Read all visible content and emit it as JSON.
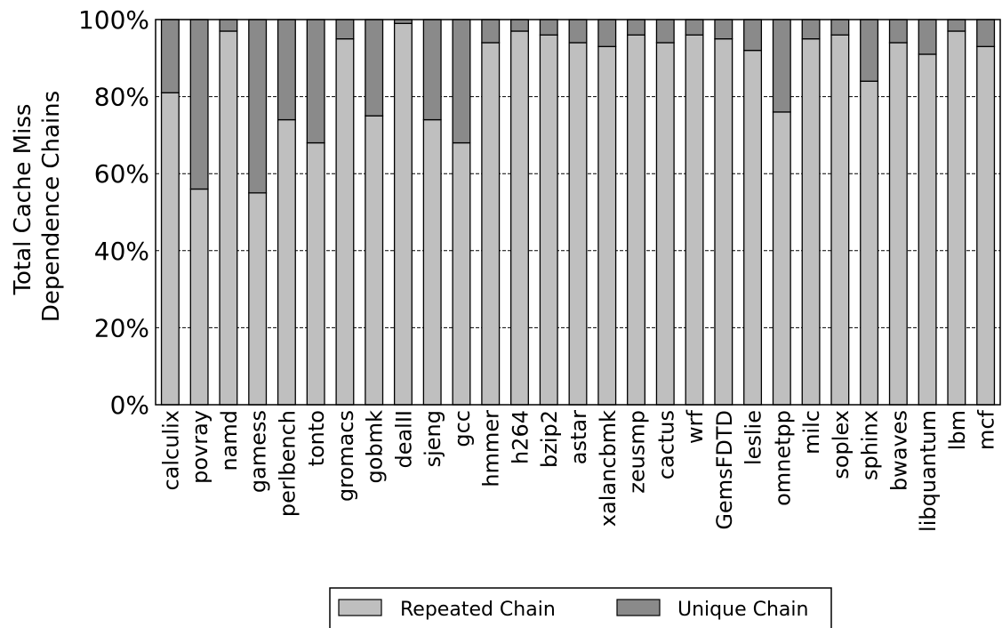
{
  "chart_data": {
    "type": "bar",
    "stacked": true,
    "ylabel_lines": [
      "Total Cache Miss",
      "Dependence Chains"
    ],
    "xlabel": "",
    "ylim": [
      0,
      100
    ],
    "y_ticks": [
      "0%",
      "20%",
      "40%",
      "60%",
      "80%",
      "100%"
    ],
    "grid": "horizontal dashed",
    "legend_position": "bottom-center",
    "categories": [
      "calculix",
      "povray",
      "namd",
      "gamess",
      "perlbench",
      "tonto",
      "gromacs",
      "gobmk",
      "dealII",
      "sjeng",
      "gcc",
      "hmmer",
      "h264",
      "bzip2",
      "astar",
      "xalancbmk",
      "zeusmp",
      "cactus",
      "wrf",
      "GemsFDTD",
      "leslie",
      "omnetpp",
      "milc",
      "soplex",
      "sphinx",
      "bwaves",
      "libquantum",
      "lbm",
      "mcf"
    ],
    "series": [
      {
        "name": "Repeated Chain",
        "color": "#bfbfbf",
        "values": [
          81,
          56,
          97,
          55,
          74,
          68,
          95,
          75,
          99,
          74,
          68,
          94,
          97,
          96,
          94,
          93,
          96,
          94,
          96,
          95,
          92,
          76,
          95,
          96,
          84,
          94,
          91,
          97,
          93
        ]
      },
      {
        "name": "Unique Chain",
        "color": "#8a8a8a",
        "values": [
          19,
          44,
          3,
          45,
          26,
          32,
          5,
          25,
          1,
          26,
          32,
          6,
          3,
          4,
          6,
          7,
          4,
          6,
          4,
          5,
          8,
          24,
          5,
          4,
          16,
          6,
          9,
          3,
          7
        ]
      }
    ]
  }
}
